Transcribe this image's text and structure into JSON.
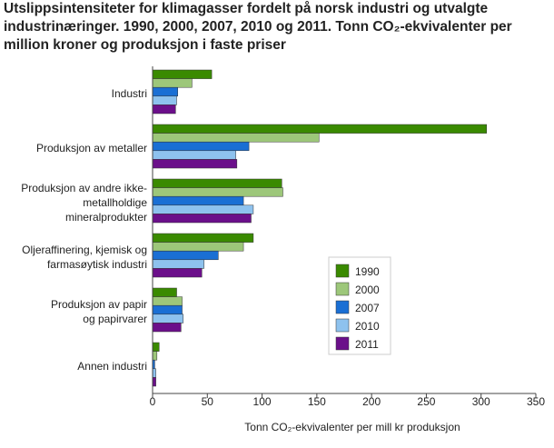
{
  "chart_data": {
    "type": "bar",
    "orientation": "horizontal",
    "title": "Utslippsintensiteter for klimagasser fordelt på norsk industri og utvalgte\nindustrinæringer. 1990, 2000, 2007, 2010 og 2011. Tonn CO₂-ekvivalenter per\nmillion kroner og produksjon i faste priser",
    "xlabel": "Tonn CO₂-ekvivalenter per mill kr produksjon",
    "categories": [
      "Industri",
      "Produksjon av metaller",
      "Produksjon av andre ikke-\nmetallholdige\nmineralprodukter",
      "Oljeraffinering, kjemisk og\nfarmasøytisk industri",
      "Produksjon av papir\nog papirvarer",
      "Annen industri"
    ],
    "series": [
      {
        "name": "1990",
        "color": "#3a8a00",
        "values": [
          54,
          305,
          118,
          92,
          22,
          6
        ]
      },
      {
        "name": "2000",
        "color": "#9dc77a",
        "values": [
          36,
          152,
          119,
          83,
          27,
          4
        ]
      },
      {
        "name": "2007",
        "color": "#1a6fd4",
        "values": [
          23,
          88,
          83,
          60,
          27,
          2
        ]
      },
      {
        "name": "2010",
        "color": "#8ec2ee",
        "values": [
          22,
          76,
          92,
          47,
          28,
          3
        ]
      },
      {
        "name": "2011",
        "color": "#6b0f8a",
        "values": [
          21,
          77,
          90,
          45,
          26,
          3
        ]
      }
    ],
    "xlim": [
      0,
      350
    ],
    "xticks": [
      0,
      50,
      100,
      150,
      200,
      250,
      300,
      350
    ],
    "grid": false,
    "legend": "lower right"
  }
}
